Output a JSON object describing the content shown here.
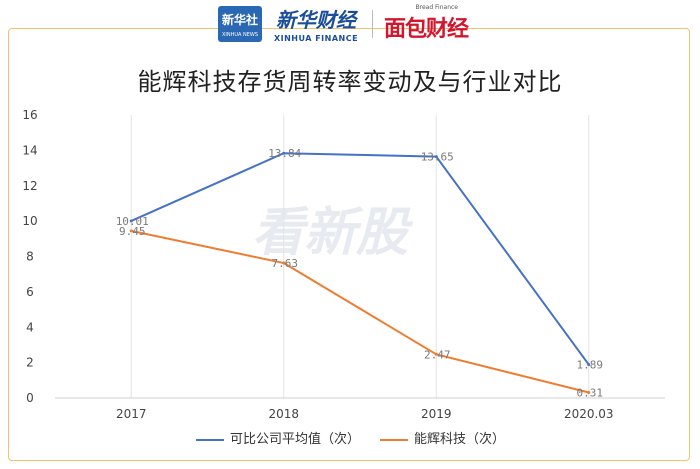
{
  "header": {
    "logo_xinhua_main": "新华社",
    "logo_xinhua_sub": "XINHUA NEWS",
    "logo_xhf_main": "新华财经",
    "logo_xhf_sub": "XINHUA FINANCE",
    "logo_bread_main": "面包财经",
    "logo_bread_sub": "Bread Finance"
  },
  "watermark": "看新股",
  "colors": {
    "series1": "#4472c4",
    "series2": "#ed7d31",
    "frame": "#f2c36a"
  },
  "chart_data": {
    "type": "line",
    "title": "能辉科技存货周转率变动及与行业对比",
    "categories": [
      "2017",
      "2018",
      "2019",
      "2020.03"
    ],
    "ylim": [
      0,
      16
    ],
    "yticks": [
      "0",
      "2",
      "4",
      "6",
      "8",
      "10",
      "12",
      "14",
      "16"
    ],
    "grid": "vertical",
    "legend_position": "bottom",
    "series": [
      {
        "name": "可比公司平均值（次）",
        "values": [
          10.01,
          13.84,
          13.65,
          1.89
        ],
        "labels": [
          "10.01",
          "13.84",
          "13.65",
          "1.89"
        ]
      },
      {
        "name": "能辉科技（次）",
        "values": [
          9.45,
          7.63,
          2.47,
          0.31
        ],
        "labels": [
          "9.45",
          "7.63",
          "2.47",
          "0.31"
        ]
      }
    ]
  }
}
